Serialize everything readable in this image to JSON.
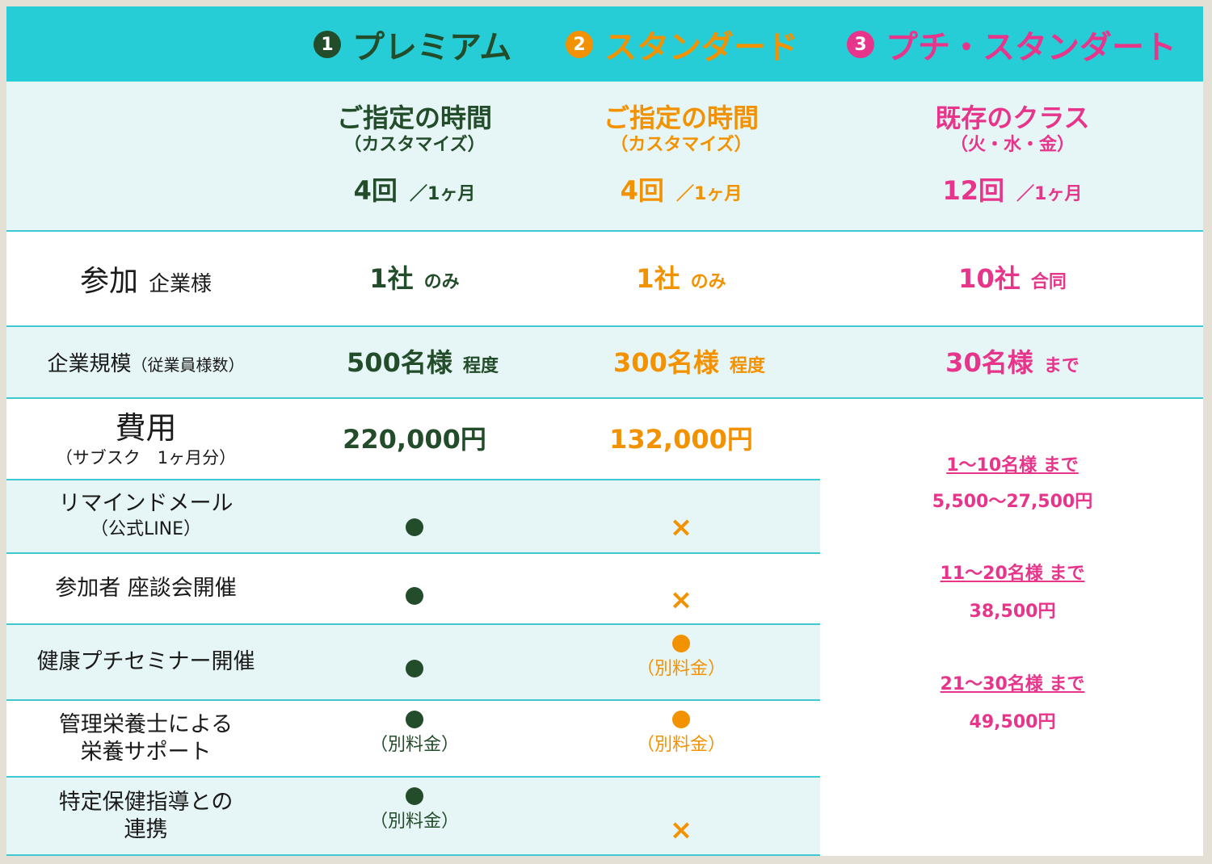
{
  "header": {
    "plans": [
      {
        "num": "1",
        "name": "プレミアム",
        "color": "#234d2a"
      },
      {
        "num": "2",
        "name": "スタンダード",
        "color": "#f39200"
      },
      {
        "num": "3",
        "name": "プチ・スタンダート",
        "color": "#e6358a"
      }
    ]
  },
  "schedule": {
    "premium": {
      "title": "ご指定の時間",
      "sub": "（カスタマイズ）",
      "count": "4回",
      "per": "／1ヶ月"
    },
    "standard": {
      "title": "ご指定の時間",
      "sub": "（カスタマイズ）",
      "count": "4回",
      "per": "／1ヶ月"
    },
    "petit": {
      "title": "既存のクラス",
      "sub": "（火・水・金）",
      "count": "12回",
      "per": "／1ヶ月"
    }
  },
  "rows": {
    "participation": {
      "label_main": "参加",
      "label_sub": "企業様",
      "premium": {
        "main": "1社",
        "sub": "のみ"
      },
      "standard": {
        "main": "1社",
        "sub": "のみ"
      },
      "petit": {
        "main": "10社",
        "sub": "合同"
      }
    },
    "scale": {
      "label_main": "企業規模",
      "label_sub": "（従業員様数）",
      "premium": {
        "main": "500名様",
        "sub": "程度"
      },
      "standard": {
        "main": "300名様",
        "sub": "程度"
      },
      "petit": {
        "main": "30名様",
        "sub": "まで"
      }
    },
    "cost": {
      "label_main": "費用",
      "label_sub": "（サブスク　1ヶ月分）",
      "premium": "220,000円",
      "standard": "132,000円",
      "petit_tiers": [
        {
          "range": "1～10名様 まで",
          "price": "5,500～27,500円"
        },
        {
          "range": "11～20名様 まで",
          "price": "38,500円"
        },
        {
          "range": "21～30名様 まで",
          "price": "49,500円"
        }
      ]
    },
    "reminder": {
      "label_l1": "リマインドメール",
      "label_l2": "（公式LINE）",
      "premium": "●",
      "standard": "×"
    },
    "roundtable": {
      "label": "参加者 座談会開催",
      "premium": "●",
      "standard": "×"
    },
    "seminar": {
      "label": "健康プチセミナー開催",
      "premium": "●",
      "standard": "●",
      "standard_note": "（別料金）"
    },
    "nutrition": {
      "label_l1": "管理栄養士による",
      "label_l2": "栄養サポート",
      "premium": "●",
      "premium_note": "（別料金）",
      "standard": "●",
      "standard_note": "（別料金）"
    },
    "guidance": {
      "label_l1": "特定保健指導との",
      "label_l2": "連携",
      "premium": "●",
      "premium_note": "（別料金）",
      "standard": "×"
    }
  },
  "colors": {
    "header_bg": "#27cdd6",
    "light_row": "#e6f5f5",
    "premium": "#234d2a",
    "standard": "#f39200",
    "petit": "#e6358a"
  }
}
